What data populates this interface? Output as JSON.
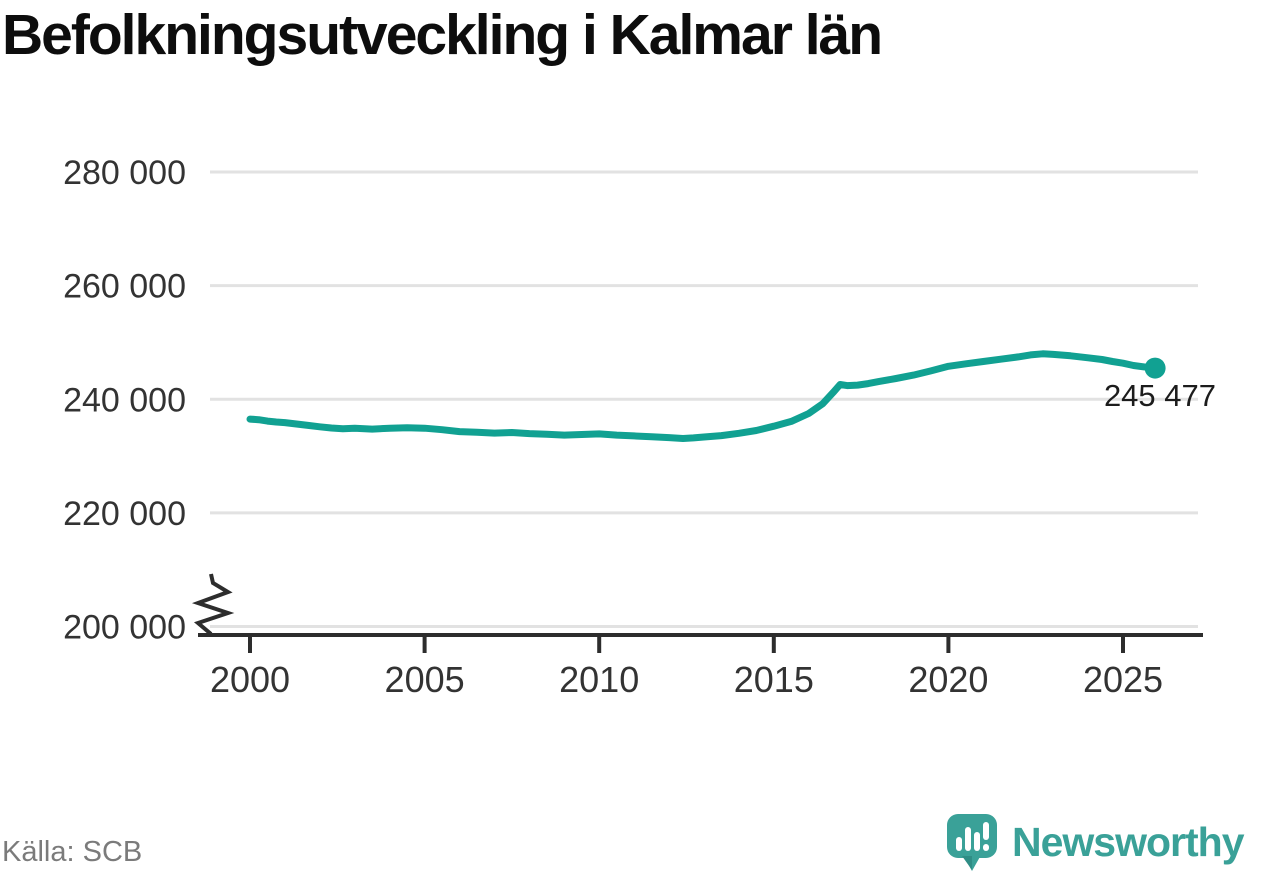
{
  "title": "Befolkningsutveckling i Kalmar län",
  "source": "Källa: SCB",
  "branding": {
    "logo_text": "Newsworthy",
    "logo_color": "#3aa198"
  },
  "chart_data": {
    "type": "line",
    "title": "Befolkningsutveckling i Kalmar län",
    "xlabel": "",
    "ylabel": "",
    "xlim": [
      1998.5,
      2027.3
    ],
    "ylim": [
      200000,
      283000
    ],
    "y_axis_break": true,
    "grid": "horizontal",
    "legend": "none",
    "x_ticks": [
      {
        "value": 2000,
        "label": "2000"
      },
      {
        "value": 2005,
        "label": "2005"
      },
      {
        "value": 2010,
        "label": "2010"
      },
      {
        "value": 2015,
        "label": "2015"
      },
      {
        "value": 2020,
        "label": "2020"
      },
      {
        "value": 2025,
        "label": "2025"
      }
    ],
    "y_ticks": [
      {
        "value": 280000,
        "label": "280 000"
      },
      {
        "value": 260000,
        "label": "260 000"
      },
      {
        "value": 240000,
        "label": "240 000"
      },
      {
        "value": 220000,
        "label": "220 000"
      },
      {
        "value": 200000,
        "label": "200 000"
      }
    ],
    "series": [
      {
        "name": "Befolkning i Kalmar län",
        "color": "#11a192",
        "points": [
          [
            2000.0,
            236500
          ],
          [
            2000.25,
            236400
          ],
          [
            2000.5,
            236150
          ],
          [
            2000.75,
            236000
          ],
          [
            2001.0,
            235900
          ],
          [
            2001.33,
            235650
          ],
          [
            2001.66,
            235400
          ],
          [
            2002.0,
            235150
          ],
          [
            2002.33,
            234950
          ],
          [
            2002.66,
            234800
          ],
          [
            2003.0,
            234900
          ],
          [
            2003.5,
            234750
          ],
          [
            2004.0,
            234900
          ],
          [
            2004.5,
            235000
          ],
          [
            2005.0,
            234900
          ],
          [
            2005.5,
            234650
          ],
          [
            2006.0,
            234300
          ],
          [
            2006.5,
            234200
          ],
          [
            2007.0,
            234050
          ],
          [
            2007.5,
            234150
          ],
          [
            2008.0,
            233950
          ],
          [
            2008.5,
            233850
          ],
          [
            2009.0,
            233700
          ],
          [
            2009.5,
            233800
          ],
          [
            2010.0,
            233900
          ],
          [
            2010.5,
            233700
          ],
          [
            2011.0,
            233550
          ],
          [
            2011.5,
            233400
          ],
          [
            2012.0,
            233250
          ],
          [
            2012.4,
            233100
          ],
          [
            2012.7,
            233200
          ],
          [
            2013.0,
            233350
          ],
          [
            2013.5,
            233600
          ],
          [
            2014.0,
            234000
          ],
          [
            2014.5,
            234500
          ],
          [
            2015.0,
            235250
          ],
          [
            2015.5,
            236100
          ],
          [
            2016.0,
            237500
          ],
          [
            2016.4,
            239200
          ],
          [
            2016.7,
            241200
          ],
          [
            2016.9,
            242600
          ],
          [
            2017.1,
            242400
          ],
          [
            2017.4,
            242500
          ],
          [
            2017.7,
            242750
          ],
          [
            2018.0,
            243100
          ],
          [
            2018.5,
            243650
          ],
          [
            2019.0,
            244250
          ],
          [
            2019.5,
            245000
          ],
          [
            2020.0,
            245800
          ],
          [
            2020.5,
            246250
          ],
          [
            2021.0,
            246650
          ],
          [
            2021.5,
            247050
          ],
          [
            2022.0,
            247450
          ],
          [
            2022.35,
            247800
          ],
          [
            2022.7,
            248000
          ],
          [
            2023.0,
            247900
          ],
          [
            2023.5,
            247650
          ],
          [
            2024.0,
            247300
          ],
          [
            2024.4,
            247000
          ],
          [
            2024.7,
            246650
          ],
          [
            2025.0,
            246350
          ],
          [
            2025.3,
            245950
          ],
          [
            2025.6,
            245700
          ],
          [
            2025.92,
            245477
          ]
        ]
      }
    ],
    "end_point": {
      "x": 2025.92,
      "value": 245477,
      "label": "245 477"
    },
    "colors": {
      "line": "#11a192",
      "grid": "#e2e2e2",
      "axis": "#2d2d2d",
      "tick_text": "#333333",
      "title_text": "#0d0d0d",
      "source_text": "#7b7b7b",
      "brand": "#3aa198"
    }
  }
}
